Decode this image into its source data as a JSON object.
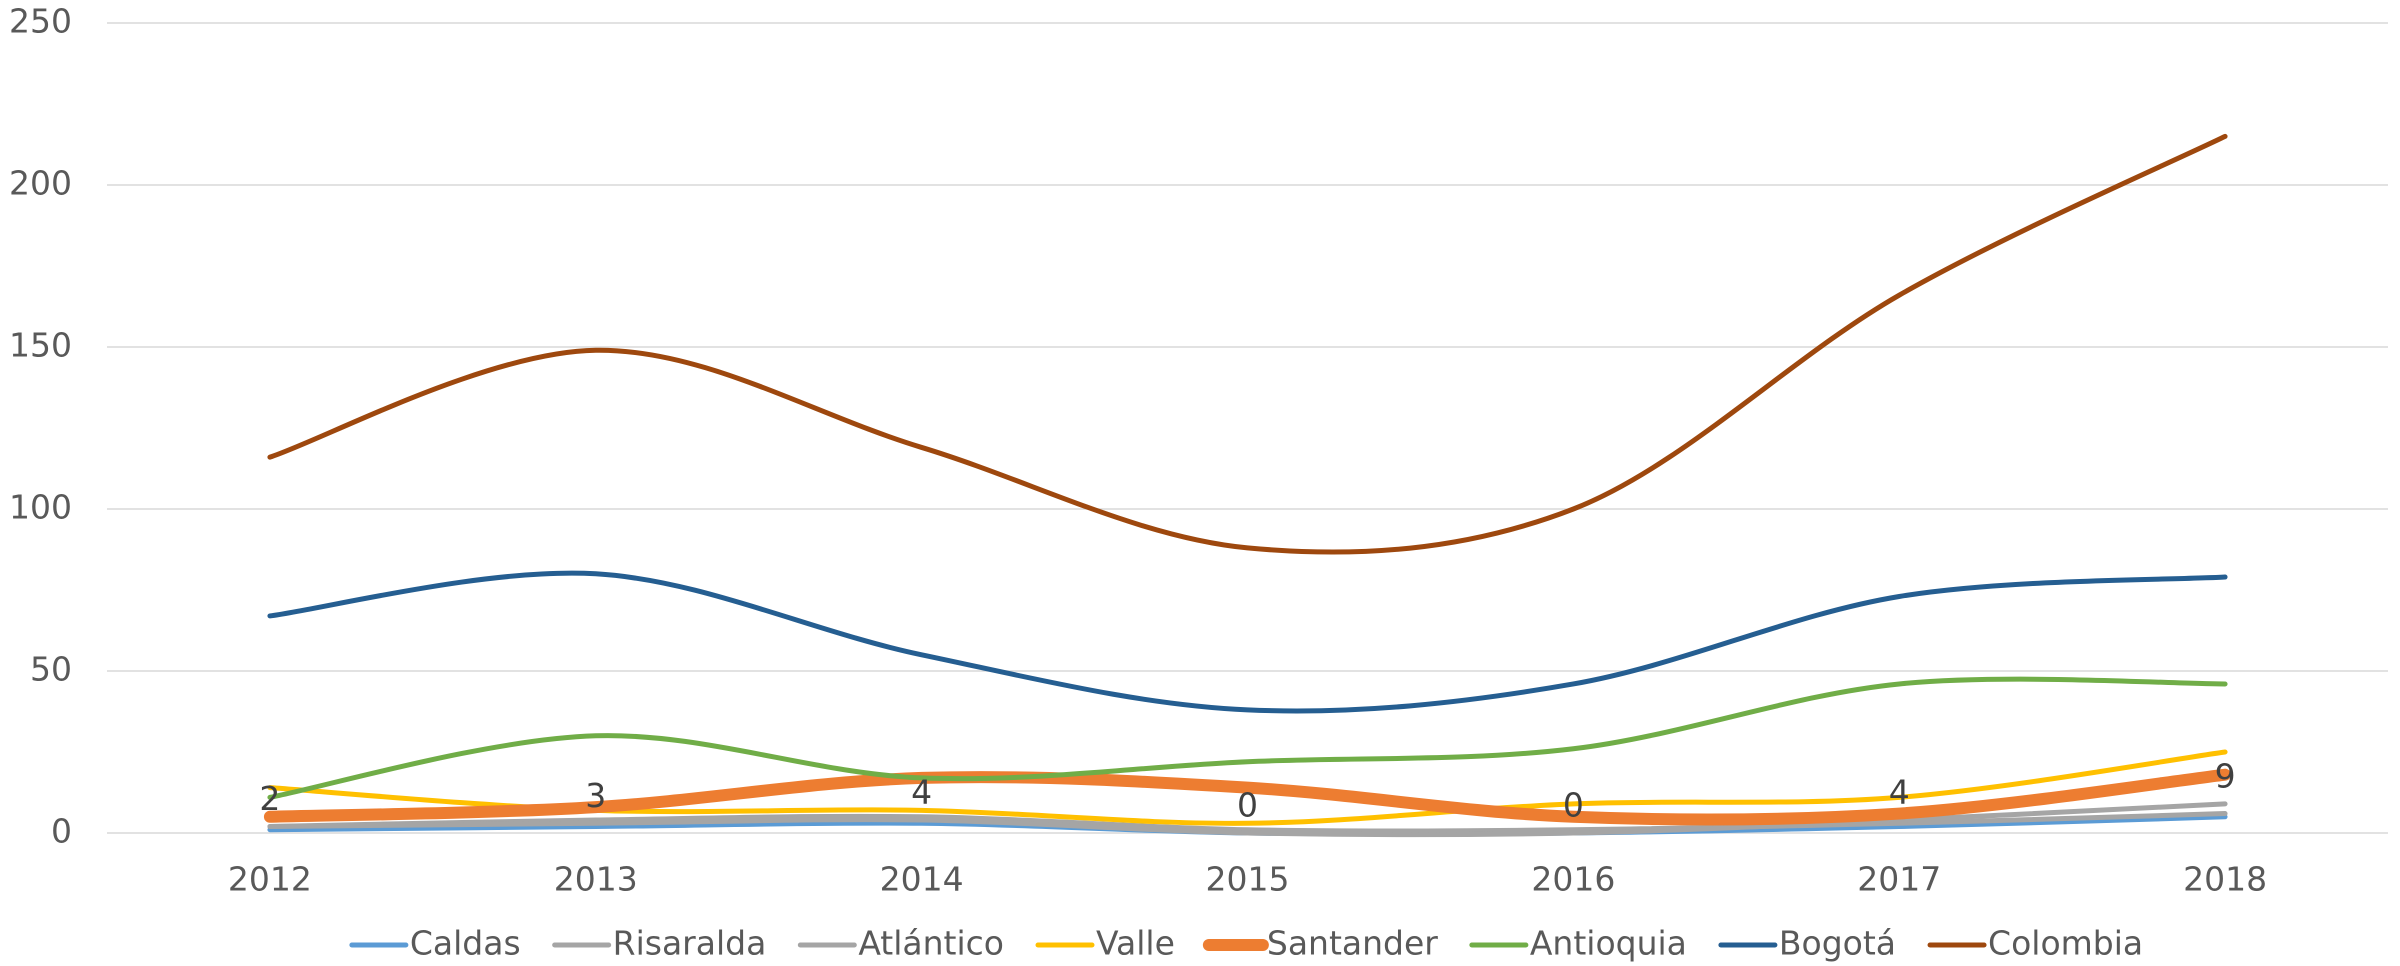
{
  "chart_data": {
    "type": "line",
    "categories": [
      "2012",
      "2013",
      "2014",
      "2015",
      "2016",
      "2017",
      "2018"
    ],
    "series": [
      {
        "name": "Caldas",
        "color": "#5b9bd5",
        "values": [
          1,
          2,
          3,
          0,
          0,
          2,
          5
        ]
      },
      {
        "name": "Risaralda",
        "color": "#a5a5a5",
        "values": [
          2,
          4,
          5,
          1,
          1,
          3,
          6
        ]
      },
      {
        "name": "Atlántico",
        "color": "#a5a5a5",
        "values": [
          2,
          3,
          4,
          0,
          0,
          4,
          9
        ],
        "data_labels": true
      },
      {
        "name": "Valle",
        "color": "#ffc000",
        "values": [
          14,
          7,
          7,
          3,
          9,
          11,
          25
        ]
      },
      {
        "name": "Santander",
        "color": "#ed7d31",
        "values": [
          5,
          8,
          17,
          14,
          5,
          6,
          18
        ],
        "thick": true
      },
      {
        "name": "Antioquia",
        "color": "#70ad47",
        "values": [
          11,
          30,
          17,
          22,
          26,
          46,
          46
        ]
      },
      {
        "name": "Bogotá",
        "color": "#255e91",
        "values": [
          67,
          80,
          55,
          38,
          46,
          73,
          79
        ]
      },
      {
        "name": "Colombia",
        "color": "#9e480e",
        "values": [
          116,
          149,
          119,
          88,
          100,
          166,
          215
        ]
      }
    ],
    "ylim": [
      0,
      250
    ],
    "yticks": [
      0,
      50,
      100,
      150,
      200,
      250
    ],
    "grid": true,
    "smooth": true,
    "legend": "bottom"
  }
}
